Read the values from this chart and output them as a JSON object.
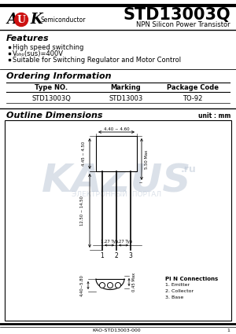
{
  "title": "STD13003Q",
  "subtitle": "NPN Silicon Power Transistor",
  "logo_semiconductor": "Semiconductor",
  "features_title": "Features",
  "features": [
    "High speed switching",
    "Vₒₕₒ(sus)=400V",
    "Suitable for Switching Regulator and Motor Control"
  ],
  "ordering_title": "Ordering Information",
  "table_headers": [
    "Type NO.",
    "Marking",
    "Package Code"
  ],
  "table_row": [
    "STD13003Q",
    "STD13003",
    "TO-92"
  ],
  "outline_title": "Outline Dimensions",
  "unit_text": "unit : mm",
  "watermark": "KAZUS",
  "watermark_sub": ".ru",
  "watermark2": "ЭЛЕКТРОННЫЙ  ПОРТАЛ",
  "pin_connections_title": "Pi N Connections",
  "pin_connections": [
    "1. Emitter",
    "2. Collector",
    "3. Base"
  ],
  "footer": "KAO-STD13003-000",
  "page": "1",
  "bg_color": "#ffffff",
  "logo_circle_color": "#cc1111",
  "watermark_color": "#b8c4d4",
  "dim_top_width": "4.40 ~ 4.60",
  "dim_body_height": "4.45 ~ 4.50",
  "dim_lead_total": "12.50 ~ 14.50",
  "dim_lead_pitch": "1.27 Typ",
  "dim_body_depth": "5.50 Max",
  "dim_bottom_width": "4.40~5.80",
  "dim_pin_diam": "0.45 Max"
}
